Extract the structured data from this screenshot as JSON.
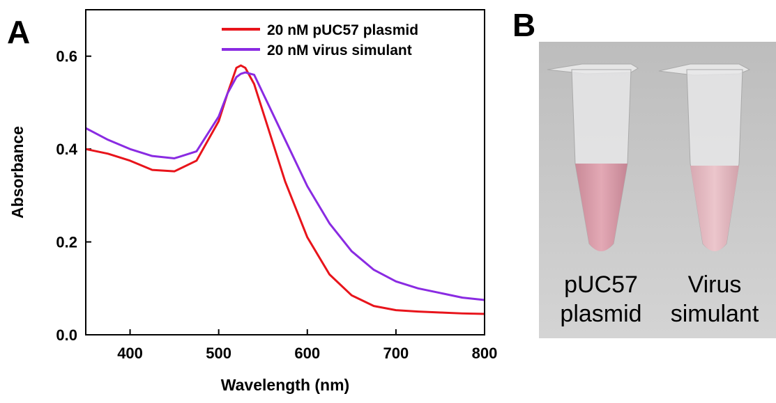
{
  "chart_data": {
    "type": "line",
    "panel_label": "A",
    "x_label": "Wavelength (nm)",
    "y_label": "Absorbance",
    "x": [
      350,
      375,
      400,
      425,
      450,
      475,
      500,
      510,
      520,
      525,
      530,
      540,
      550,
      575,
      600,
      625,
      650,
      675,
      700,
      725,
      750,
      775,
      800
    ],
    "series": [
      {
        "name": "20 nM pUC57 plasmid",
        "color": "#e8141b",
        "values": [
          0.4,
          0.39,
          0.375,
          0.355,
          0.352,
          0.375,
          0.46,
          0.52,
          0.575,
          0.58,
          0.575,
          0.54,
          0.48,
          0.33,
          0.21,
          0.13,
          0.085,
          0.062,
          0.053,
          0.05,
          0.048,
          0.046,
          0.045
        ]
      },
      {
        "name": "20 nM virus simulant",
        "color": "#8a2be2",
        "values": [
          0.445,
          0.42,
          0.4,
          0.385,
          0.38,
          0.395,
          0.47,
          0.52,
          0.555,
          0.562,
          0.565,
          0.56,
          0.52,
          0.42,
          0.32,
          0.24,
          0.18,
          0.14,
          0.115,
          0.1,
          0.09,
          0.08,
          0.075
        ]
      }
    ],
    "xlim": [
      350,
      800
    ],
    "xticks": [
      400,
      500,
      600,
      700,
      800
    ],
    "ylim": [
      0,
      0.7
    ],
    "yticks": [
      {
        "value": 0,
        "label": "0.0"
      },
      0.2,
      0.4,
      0.6
    ],
    "legend": "upper right"
  },
  "photo": {
    "panel_label": "B",
    "tube_labels": [
      [
        "pUC57",
        "plasmid"
      ],
      [
        "Virus",
        "simulant"
      ]
    ]
  }
}
